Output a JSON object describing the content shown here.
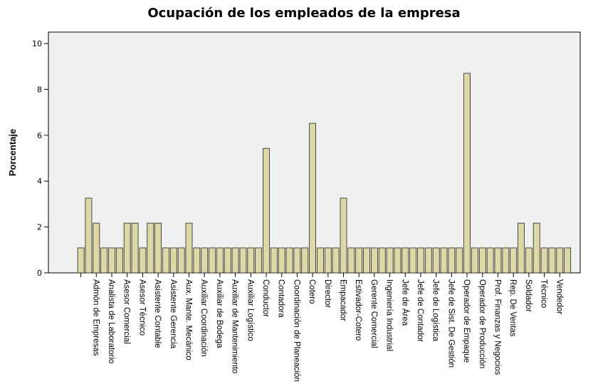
{
  "chart_data": {
    "type": "bar",
    "title": "Ocupación de los empleados de la empresa",
    "y_label": "Porcentaje",
    "categories": [
      null,
      null,
      "Admón de Empresas",
      null,
      "Analista de Laboratorio",
      null,
      "Asesor Comercial",
      null,
      "Asesor Técnico",
      null,
      "Asistente Contable",
      null,
      "Asistente Gerencia",
      null,
      "Aux. Mante. Mecánico",
      null,
      "Auxiliar Coordinación",
      null,
      "Auxiliar de Bodega",
      null,
      "Auxiliar de Mantenimiento",
      null,
      "Auxiliar Logístico",
      null,
      "Conductor",
      null,
      "Contadora",
      null,
      "Coordinación de Planeación",
      null,
      "Cotero",
      null,
      "Director",
      null,
      "Empacador",
      null,
      "Estivador-Cotero",
      null,
      "Gerente Comercial",
      null,
      "Ingeniería Industrial",
      null,
      "Jefe de Área",
      null,
      "Jefe de Contador",
      null,
      "Jefe de Logística",
      null,
      "Jefe de Sist. De Gestión",
      null,
      "Operador de Empaque",
      null,
      "Operador de Producción",
      null,
      "Prof. Finanzas y Negocios",
      null,
      "Rep. De Ventas",
      null,
      "Soldador",
      null,
      "Técnico",
      null,
      "Vendedor",
      null
    ],
    "values": [
      1.09,
      3.26,
      2.17,
      1.09,
      1.09,
      1.09,
      2.17,
      2.17,
      1.09,
      2.17,
      2.17,
      1.09,
      1.09,
      1.09,
      2.17,
      1.09,
      1.09,
      1.09,
      1.09,
      1.09,
      1.09,
      1.09,
      1.09,
      1.09,
      5.43,
      1.09,
      1.09,
      1.09,
      1.09,
      1.09,
      6.52,
      1.09,
      1.09,
      1.09,
      3.26,
      1.09,
      1.09,
      1.09,
      1.09,
      1.09,
      1.09,
      1.09,
      1.09,
      1.09,
      1.09,
      1.09,
      1.09,
      1.09,
      1.09,
      1.09,
      8.7,
      1.09,
      1.09,
      1.09,
      1.09,
      1.09,
      1.09,
      2.17,
      1.09,
      2.17,
      1.09,
      1.09,
      1.09,
      1.09
    ],
    "color": "#ddd8a6",
    "ylim": [
      0,
      10.5
    ],
    "yticks": [
      0,
      2,
      4,
      6,
      8,
      10
    ]
  }
}
